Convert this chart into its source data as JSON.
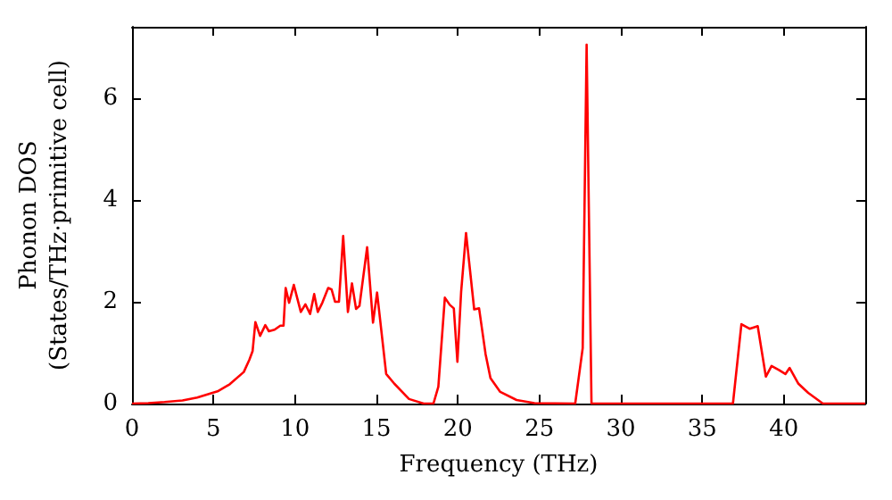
{
  "chart_data": {
    "type": "line",
    "xlabel": "Frequency (THz)",
    "ylabel": "Phonon DOS\n(States/THz·primitive cell)",
    "x": [
      0,
      1,
      2,
      3.1,
      4,
      5.25,
      6,
      6.86,
      7.2,
      7.4,
      7.57,
      7.86,
      8.18,
      8.4,
      8.75,
      9.1,
      9.3,
      9.43,
      9.64,
      9.93,
      10.36,
      10.64,
      10.93,
      11.18,
      11.4,
      11.68,
      12.04,
      12.25,
      12.46,
      12.7,
      12.96,
      13.25,
      13.5,
      13.75,
      13.96,
      14.43,
      14.79,
      15.04,
      15.6,
      16.1,
      17,
      17.9,
      18.5,
      18.8,
      19.2,
      19.5,
      19.75,
      19.97,
      20.2,
      20.5,
      21,
      21.3,
      21.7,
      22,
      22.6,
      23.6,
      24.7,
      27.2,
      27.66,
      27.9,
      28.2,
      36.88,
      37.4,
      37.9,
      38.2,
      38.4,
      38.9,
      39.25,
      39.7,
      40.1,
      40.36,
      40.9,
      41.5,
      42.4,
      45
    ],
    "series": [
      {
        "color": "#ff0000",
        "values": [
          0,
          0.01,
          0.03,
          0.06,
          0.12,
          0.24,
          0.38,
          0.62,
          0.86,
          1.03,
          1.6,
          1.33,
          1.54,
          1.42,
          1.45,
          1.53,
          1.53,
          2.27,
          1.98,
          2.33,
          1.8,
          1.95,
          1.76,
          2.15,
          1.8,
          1.98,
          2.27,
          2.24,
          2,
          2,
          3.29,
          1.8,
          2.36,
          1.86,
          1.92,
          3.07,
          1.59,
          2.18,
          0.58,
          0.39,
          0.09,
          0,
          0,
          0.33,
          2.08,
          1.94,
          1.87,
          0.82,
          2.2,
          3.35,
          1.85,
          1.87,
          0.97,
          0.5,
          0.23,
          0.07,
          0.01,
          0,
          1.09,
          7.05,
          0,
          0,
          1.56,
          1.47,
          1.5,
          1.52,
          0.53,
          0.74,
          0.66,
          0.58,
          0.7,
          0.39,
          0.21,
          0,
          0
        ]
      }
    ],
    "xlim": [
      0,
      45
    ],
    "ylim": [
      0,
      7.4
    ],
    "xticks": [
      0,
      5,
      10,
      15,
      20,
      25,
      30,
      35,
      40
    ],
    "yticks": [
      0,
      2,
      4,
      6
    ],
    "grid": false,
    "marker": "none",
    "line_style": "solid"
  }
}
